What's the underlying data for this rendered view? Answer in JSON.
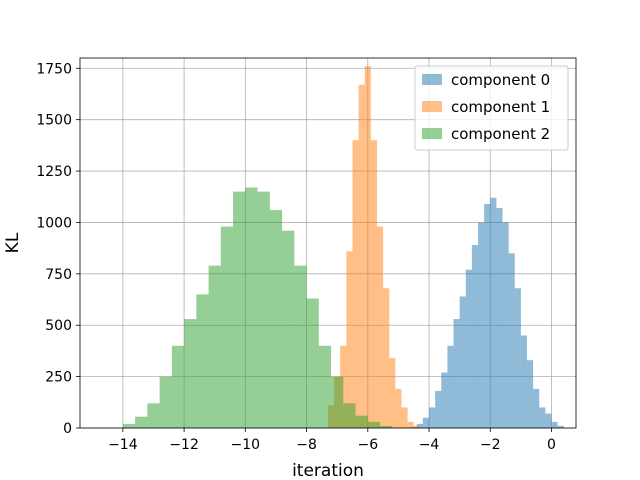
{
  "chart_data": {
    "type": "bar",
    "subtype": "histogram",
    "title": "",
    "xlabel": "iteration",
    "ylabel": "KL",
    "xlim": [
      -15.4,
      0.8
    ],
    "ylim": [
      0,
      1800
    ],
    "x_ticks": [
      -14,
      -12,
      -10,
      -8,
      -6,
      -4,
      -2,
      0
    ],
    "x_tick_labels": [
      "−14",
      "−12",
      "−10",
      "−8",
      "−6",
      "−4",
      "−2",
      "0"
    ],
    "y_ticks": [
      0,
      250,
      500,
      750,
      1000,
      1250,
      1500,
      1750
    ],
    "y_tick_labels": [
      "0",
      "250",
      "500",
      "750",
      "1000",
      "1250",
      "1500",
      "1750"
    ],
    "grid": true,
    "legend_position": "top-right",
    "series": [
      {
        "name": "component 0",
        "color": "#1f77b4",
        "bin_start": -4.6,
        "bin_width": 0.2,
        "values": [
          5,
          20,
          50,
          100,
          180,
          270,
          400,
          530,
          640,
          770,
          890,
          1000,
          1090,
          1120,
          1070,
          1000,
          850,
          680,
          450,
          330,
          190,
          100,
          70,
          30,
          10
        ]
      },
      {
        "name": "component 1",
        "color": "#ff7f0e",
        "bin_start": -7.3,
        "bin_width": 0.2,
        "values": [
          110,
          250,
          400,
          860,
          1400,
          1670,
          1760,
          1400,
          980,
          680,
          340,
          190,
          100,
          30,
          10
        ]
      },
      {
        "name": "component 2",
        "color": "#2ca02c",
        "bin_start": -14.0,
        "bin_width": 0.4,
        "values": [
          20,
          55,
          120,
          250,
          400,
          530,
          650,
          790,
          980,
          1150,
          1170,
          1150,
          1060,
          960,
          790,
          630,
          400,
          250,
          120,
          60,
          30,
          10
        ]
      }
    ]
  }
}
